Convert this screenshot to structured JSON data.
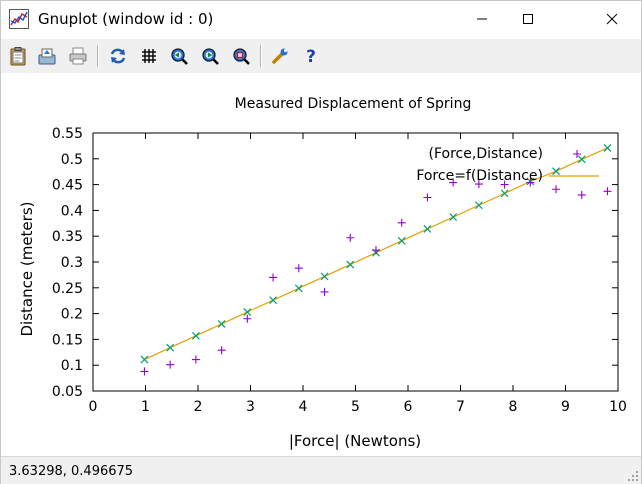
{
  "window": {
    "title": "Gnuplot (window id : 0)"
  },
  "toolbar": {
    "buttons": [
      {
        "name": "copy-clipboard",
        "icon": "clipboard-icon"
      },
      {
        "name": "print-to-file",
        "icon": "save-icon"
      },
      {
        "name": "print",
        "icon": "printer-icon"
      },
      {
        "name": "replot",
        "icon": "refresh-icon"
      },
      {
        "name": "toggle-grid",
        "icon": "grid-icon"
      },
      {
        "name": "zoom-previous",
        "icon": "zoom-previous-icon"
      },
      {
        "name": "zoom-next",
        "icon": "zoom-next-icon"
      },
      {
        "name": "unzoom",
        "icon": "unzoom-icon"
      },
      {
        "name": "options",
        "icon": "wrench-icon"
      },
      {
        "name": "help",
        "icon": "help-icon"
      }
    ]
  },
  "status": {
    "coordinates": "3.63298,  0.496675"
  },
  "colors": {
    "series_measured": "#9400d3",
    "series_fit": "#e69f00",
    "series_fit_points": "#009e73"
  },
  "chart_data": {
    "type": "scatter",
    "title": "Measured Displacement of Spring",
    "xlabel": "|Force| (Newtons)",
    "ylabel": "Distance (meters)",
    "xlim": [
      0,
      10
    ],
    "ylim": [
      0.05,
      0.55
    ],
    "xticks": [
      "0",
      "1",
      "2",
      "3",
      "4",
      "5",
      "6",
      "7",
      "8",
      "9",
      "10"
    ],
    "yticks": [
      "0.05",
      "0.1",
      "0.15",
      "0.2",
      "0.25",
      "0.3",
      "0.35",
      "0.4",
      "0.45",
      "0.5",
      "0.55"
    ],
    "legend_position": "top-right",
    "grid": false,
    "series": [
      {
        "name": "(Force,Distance)",
        "marker": "plus",
        "color": "#9400d3",
        "x": [
          0.98,
          1.47,
          1.96,
          2.45,
          2.94,
          3.43,
          3.92,
          4.41,
          4.9,
          5.39,
          5.88,
          6.37,
          6.86,
          7.35,
          7.84,
          8.33,
          8.82,
          9.31,
          9.8
        ],
        "y": [
          0.088,
          0.101,
          0.111,
          0.129,
          0.19,
          0.27,
          0.288,
          0.242,
          0.347,
          0.323,
          0.376,
          0.425,
          0.454,
          0.451,
          0.45,
          0.454,
          0.441,
          0.43,
          0.437
        ]
      },
      {
        "name": "Force=f(Distance)",
        "marker": "line+cross",
        "color": "#e69f00",
        "marker_color": "#009e73",
        "x": [
          0.98,
          1.47,
          1.96,
          2.45,
          2.94,
          3.43,
          3.92,
          4.41,
          4.9,
          5.39,
          5.88,
          6.37,
          6.86,
          7.35,
          7.84,
          8.33,
          8.82,
          9.31,
          9.8
        ],
        "y": [
          0.111,
          0.134,
          0.157,
          0.18,
          0.203,
          0.226,
          0.249,
          0.272,
          0.295,
          0.318,
          0.341,
          0.364,
          0.387,
          0.41,
          0.433,
          0.456,
          0.476,
          0.499,
          0.521
        ]
      }
    ]
  }
}
